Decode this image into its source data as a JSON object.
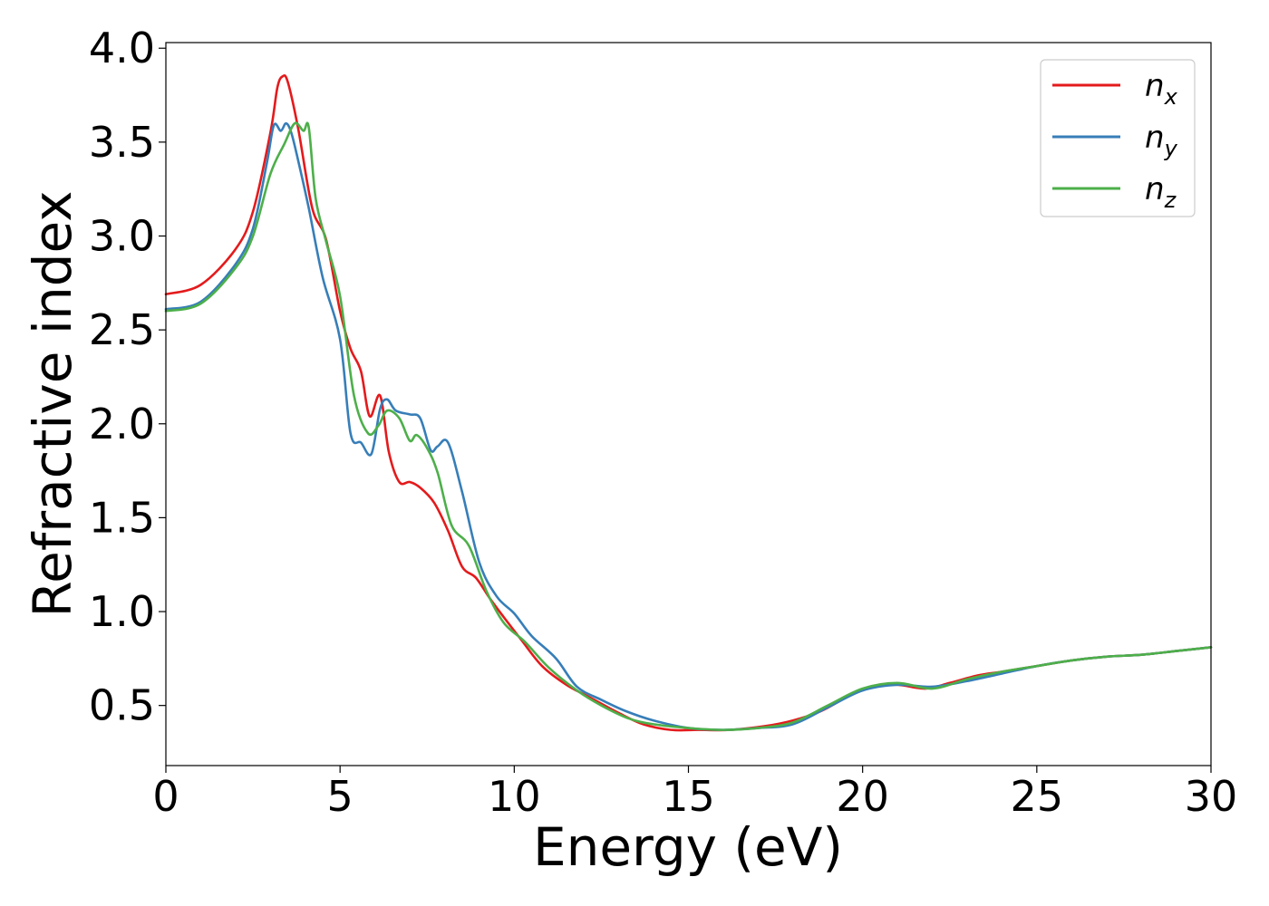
{
  "chart_data": {
    "type": "line",
    "xlabel": "Energy (eV)",
    "ylabel": "Refractive index",
    "xlim": [
      0,
      30
    ],
    "ylim": [
      0.18,
      4.03
    ],
    "xticks": [
      0,
      5,
      10,
      15,
      20,
      25,
      30
    ],
    "xtick_labels": [
      "0",
      "5",
      "10",
      "15",
      "20",
      "25",
      "30"
    ],
    "yticks": [
      0.5,
      1.0,
      1.5,
      2.0,
      2.5,
      3.0,
      3.5,
      4.0
    ],
    "ytick_labels": [
      "0.5",
      "1.0",
      "1.5",
      "2.0",
      "2.5",
      "3.0",
      "3.5",
      "4.0"
    ],
    "grid": false,
    "legend_position": "top-right",
    "series": [
      {
        "name": "n_x",
        "label_main": "n",
        "label_sub": "x",
        "color": "#e41a1c",
        "x": [
          0,
          1,
          2,
          2.5,
          3,
          3.2,
          3.35,
          3.5,
          3.8,
          4.2,
          4.6,
          5,
          5.3,
          5.6,
          5.85,
          6.15,
          6.4,
          6.7,
          7.0,
          7.3,
          7.7,
          8.1,
          8.5,
          8.9,
          9.3,
          9.7,
          10.2,
          10.8,
          11.5,
          12.2,
          13,
          13.7,
          14.5,
          15.3,
          16.2,
          17.2,
          18,
          18.8,
          19.5,
          20.2,
          21,
          21.8,
          22.5,
          23.3,
          24,
          25,
          26,
          27,
          28,
          29,
          30
        ],
        "y": [
          2.69,
          2.74,
          2.93,
          3.13,
          3.55,
          3.79,
          3.85,
          3.82,
          3.57,
          3.15,
          2.98,
          2.6,
          2.4,
          2.28,
          2.04,
          2.15,
          1.85,
          1.69,
          1.69,
          1.66,
          1.58,
          1.43,
          1.24,
          1.18,
          1.07,
          0.97,
          0.85,
          0.71,
          0.61,
          0.54,
          0.46,
          0.4,
          0.37,
          0.37,
          0.37,
          0.39,
          0.42,
          0.47,
          0.54,
          0.6,
          0.61,
          0.59,
          0.62,
          0.66,
          0.68,
          0.71,
          0.74,
          0.76,
          0.77,
          0.79,
          0.81
        ]
      },
      {
        "name": "n_y",
        "label_main": "n",
        "label_sub": "y",
        "color": "#377eb8",
        "x": [
          0,
          1,
          2,
          2.5,
          2.9,
          3.1,
          3.3,
          3.45,
          3.6,
          3.8,
          4.1,
          4.5,
          5,
          5.3,
          5.6,
          5.9,
          6.15,
          6.35,
          6.6,
          7.0,
          7.3,
          7.6,
          7.8,
          8.1,
          8.5,
          9.0,
          9.5,
          10.0,
          10.5,
          11.2,
          11.8,
          12.5,
          13.2,
          14.0,
          15.0,
          16.0,
          17.0,
          18.0,
          19.0,
          20.0,
          21.0,
          22.0,
          23.0,
          24.0,
          25.0,
          26.0,
          27.0,
          28.0,
          29.0,
          30.0
        ],
        "y": [
          2.61,
          2.65,
          2.85,
          3.04,
          3.39,
          3.59,
          3.56,
          3.6,
          3.55,
          3.4,
          3.15,
          2.78,
          2.45,
          1.95,
          1.9,
          1.84,
          2.08,
          2.13,
          2.07,
          2.05,
          2.03,
          1.86,
          1.88,
          1.9,
          1.64,
          1.26,
          1.08,
          0.99,
          0.87,
          0.75,
          0.6,
          0.53,
          0.47,
          0.42,
          0.38,
          0.37,
          0.38,
          0.4,
          0.49,
          0.58,
          0.61,
          0.6,
          0.63,
          0.67,
          0.71,
          0.74,
          0.76,
          0.77,
          0.79,
          0.81
        ]
      },
      {
        "name": "n_z",
        "label_main": "n",
        "label_sub": "z",
        "color": "#4daf4a",
        "x": [
          0,
          1,
          2,
          2.5,
          3,
          3.4,
          3.7,
          3.95,
          4.1,
          4.3,
          4.6,
          5.0,
          5.4,
          5.8,
          6.1,
          6.35,
          6.7,
          7.0,
          7.2,
          7.5,
          7.8,
          8.2,
          8.7,
          9.2,
          9.7,
          10.3,
          11.0,
          11.8,
          12.5,
          13.3,
          14.0,
          15.0,
          16.0,
          17.0,
          18.0,
          19.0,
          20.0,
          21.0,
          22.0,
          23.0,
          24.0,
          25.0,
          26.0,
          27.0,
          28.0,
          29.0,
          30.0
        ],
        "y": [
          2.6,
          2.64,
          2.83,
          3.0,
          3.33,
          3.49,
          3.6,
          3.56,
          3.58,
          3.2,
          2.97,
          2.68,
          2.15,
          1.95,
          1.99,
          2.07,
          2.03,
          1.91,
          1.94,
          1.87,
          1.74,
          1.46,
          1.35,
          1.11,
          0.94,
          0.84,
          0.7,
          0.58,
          0.5,
          0.43,
          0.4,
          0.38,
          0.37,
          0.38,
          0.41,
          0.5,
          0.59,
          0.62,
          0.59,
          0.64,
          0.68,
          0.71,
          0.74,
          0.76,
          0.77,
          0.79,
          0.81
        ]
      }
    ]
  }
}
